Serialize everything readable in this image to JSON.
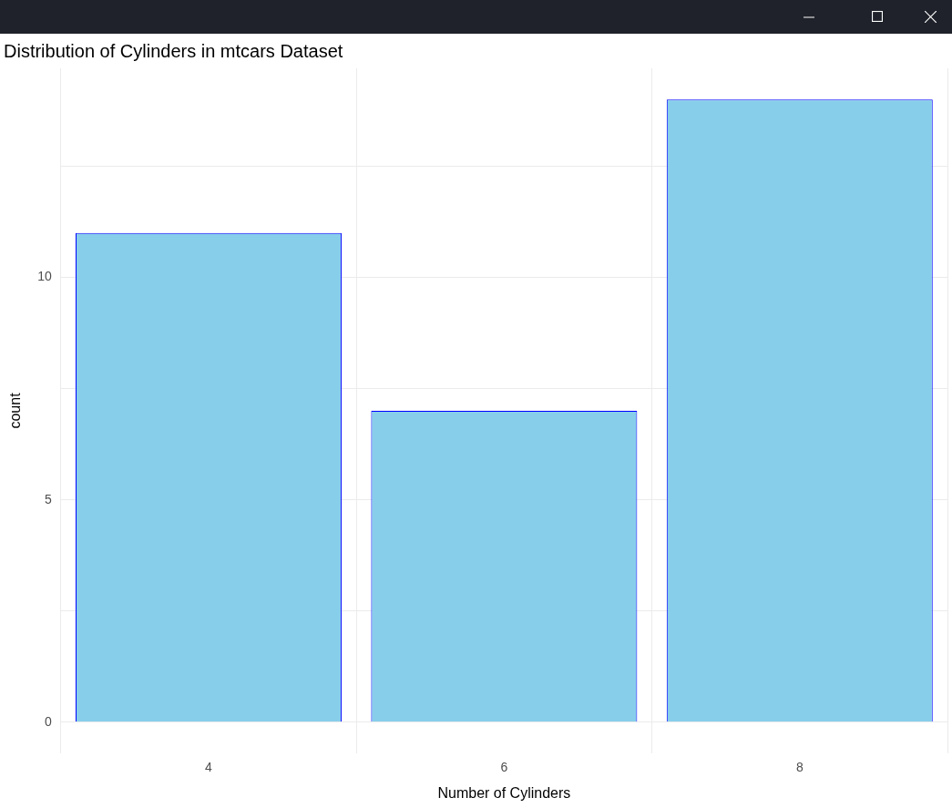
{
  "chart_data": {
    "type": "bar",
    "title": "Distribution of Cylinders in mtcars Dataset",
    "xlabel": "Number of Cylinders",
    "ylabel": "count",
    "categories": [
      "4",
      "6",
      "8"
    ],
    "values": [
      11,
      7,
      14
    ],
    "color": "#87ceeb",
    "ylim": [
      -0.7,
      14.7
    ],
    "yticks": [
      0,
      {
        "value": 2.5,
        "label": null
      },
      5,
      {
        "value": 7.5,
        "label": null
      },
      10,
      {
        "value": 12.5,
        "label": null
      }
    ],
    "grid": true
  }
}
